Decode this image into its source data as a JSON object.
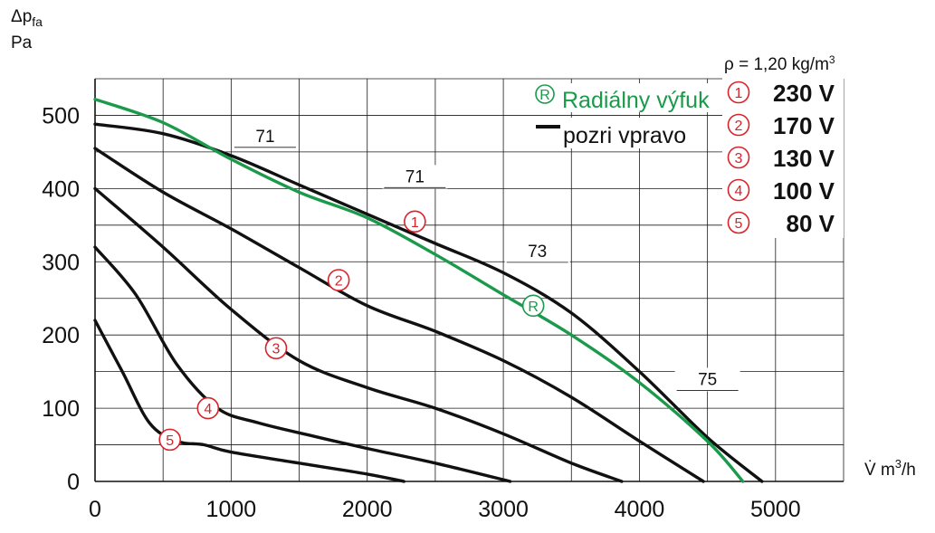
{
  "chart_data": {
    "type": "line",
    "title": "",
    "y_label": {
      "line1": "Δp",
      "sub": "fa",
      "line2": "Pa"
    },
    "x_label": {
      "main": "V̇ m",
      "sup": "3",
      "tail": "/h"
    },
    "density_note": {
      "main": "ρ = 1,20 kg/m",
      "sup": "3"
    },
    "xlim": [
      0,
      5500
    ],
    "ylim": [
      0,
      550
    ],
    "x_ticks": [
      0,
      1000,
      2000,
      3000,
      4000,
      5000
    ],
    "y_ticks": [
      0,
      100,
      200,
      300,
      400,
      500
    ],
    "grid": true,
    "grid_x_step": 500,
    "grid_y_step": 50,
    "green_legend": {
      "symbol": "R",
      "text": "Radiálny výfuk"
    },
    "black_legend": {
      "text": "pozri vpravo"
    },
    "legend": [
      {
        "id": "1",
        "label": "230 V"
      },
      {
        "id": "2",
        "label": "170 V"
      },
      {
        "id": "3",
        "label": "130 V"
      },
      {
        "id": "4",
        "label": "100 V"
      },
      {
        "id": "5",
        "label": "80 V"
      }
    ],
    "series": [
      {
        "id": "1",
        "color": "#111111",
        "x": [
          0,
          500,
          1000,
          1500,
          2000,
          2500,
          3000,
          3500,
          4000,
          4500,
          4900
        ],
        "y": [
          488,
          475,
          445,
          405,
          365,
          325,
          285,
          230,
          150,
          60,
          0
        ]
      },
      {
        "id": "2",
        "color": "#111111",
        "x": [
          0,
          500,
          1000,
          1500,
          2000,
          2500,
          3000,
          3500,
          4000,
          4470
        ],
        "y": [
          455,
          395,
          345,
          292,
          240,
          205,
          165,
          115,
          55,
          0
        ]
      },
      {
        "id": "3",
        "color": "#111111",
        "x": [
          0,
          500,
          1000,
          1500,
          2000,
          2500,
          3000,
          3500,
          3870
        ],
        "y": [
          400,
          320,
          235,
          165,
          128,
          100,
          65,
          25,
          0
        ]
      },
      {
        "id": "4",
        "color": "#111111",
        "x": [
          0,
          300,
          600,
          900,
          1200,
          1600,
          2000,
          2500,
          3050
        ],
        "y": [
          320,
          255,
          160,
          100,
          80,
          62,
          45,
          25,
          0
        ]
      },
      {
        "id": "5",
        "color": "#111111",
        "x": [
          0,
          200,
          400,
          600,
          800,
          1000,
          1500,
          2000,
          2270
        ],
        "y": [
          220,
          150,
          80,
          55,
          50,
          40,
          25,
          10,
          0
        ]
      },
      {
        "id": "R",
        "color": "#1a9a4a",
        "x": [
          0,
          500,
          1000,
          1500,
          2000,
          2500,
          3000,
          3500,
          4000,
          4500,
          4760
        ],
        "y": [
          522,
          490,
          440,
          395,
          360,
          310,
          255,
          200,
          135,
          55,
          0
        ]
      }
    ],
    "efficiency_labels": [
      {
        "text": "71",
        "x": 1250,
        "y": 460
      },
      {
        "text": "71",
        "x": 2350,
        "y": 405
      },
      {
        "text": "73",
        "x": 3250,
        "y": 303
      },
      {
        "text": "75",
        "x": 4500,
        "y": 128
      }
    ],
    "curve_markers": [
      {
        "id": "1",
        "x": 2350,
        "y": 355
      },
      {
        "id": "2",
        "x": 1790,
        "y": 275
      },
      {
        "id": "3",
        "x": 1330,
        "y": 182
      },
      {
        "id": "4",
        "x": 830,
        "y": 100
      },
      {
        "id": "5",
        "x": 550,
        "y": 57
      },
      {
        "id": "R",
        "x": 3220,
        "y": 240
      }
    ]
  }
}
